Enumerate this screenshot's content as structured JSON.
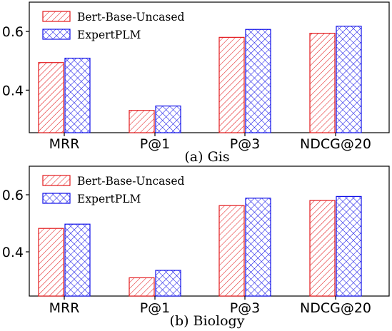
{
  "colors": {
    "bert": "#e3191c",
    "expert": "#1010e8",
    "axis": "#000000"
  },
  "chart_data": [
    {
      "type": "bar",
      "caption": "(a) Gis",
      "categories": [
        "MRR",
        "P@1",
        "P@3",
        "NDCG@20"
      ],
      "series": [
        {
          "name": "Bert-Base-Uncased",
          "hatch": "diagonal",
          "values": [
            0.494,
            0.331,
            0.58,
            0.594
          ]
        },
        {
          "name": "ExpertPLM",
          "hatch": "crosshatch",
          "values": [
            0.509,
            0.346,
            0.607,
            0.618
          ]
        }
      ],
      "ylim": [
        0.255,
        0.7
      ],
      "yticks": [
        0.4,
        0.6
      ],
      "ytick_labels": [
        "0.4",
        "0.6"
      ],
      "legend": "top-left",
      "grid": false
    },
    {
      "type": "bar",
      "caption": "(b) Biology",
      "categories": [
        "MRR",
        "P@1",
        "P@3",
        "NDCG@20"
      ],
      "series": [
        {
          "name": "Bert-Base-Uncased",
          "hatch": "diagonal",
          "values": [
            0.482,
            0.309,
            0.562,
            0.58
          ]
        },
        {
          "name": "ExpertPLM",
          "hatch": "crosshatch",
          "values": [
            0.497,
            0.335,
            0.588,
            0.594
          ]
        }
      ],
      "ylim": [
        0.245,
        0.7
      ],
      "yticks": [
        0.4,
        0.6
      ],
      "ytick_labels": [
        "0.4",
        "0.6"
      ],
      "legend": "top-left",
      "grid": false
    }
  ]
}
